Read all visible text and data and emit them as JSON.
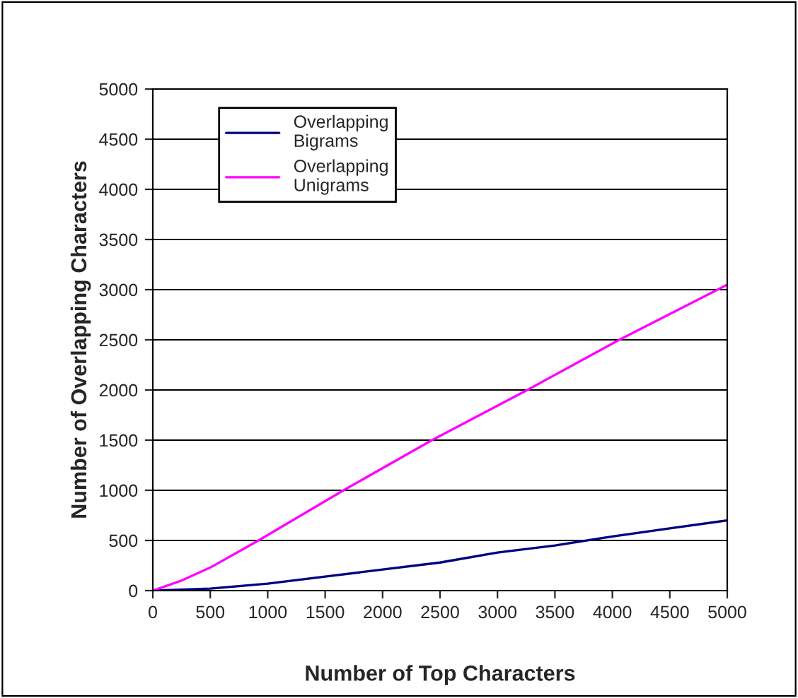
{
  "chart_data": {
    "type": "line",
    "xlabel": "Number of Top Characters",
    "ylabel": "Number of Overlapping Characters",
    "xlim": [
      0,
      5000
    ],
    "xticks": [
      0,
      500,
      1000,
      1500,
      2000,
      2500,
      3000,
      3500,
      4000,
      4500,
      5000
    ],
    "ylim": [
      0,
      5000
    ],
    "yticks": [
      0,
      500,
      1000,
      1500,
      2000,
      2500,
      3000,
      3500,
      4000,
      4500,
      5000
    ],
    "grid": "y",
    "legend": "top left",
    "marker": "none",
    "line_style": "solid",
    "series": [
      {
        "name": "Overlapping\nBigrams",
        "color": "#000080",
        "x": [
          0,
          500,
          1000,
          1500,
          2000,
          2500,
          3000,
          3500,
          4000,
          4500,
          5000
        ],
        "values": [
          0,
          20,
          70,
          140,
          210,
          280,
          380,
          450,
          540,
          620,
          700
        ]
      },
      {
        "name": "Overlapping\nUnigrams",
        "color": "#ff00ff",
        "x": [
          0,
          250,
          500,
          920,
          1660,
          2430,
          3260,
          4060,
          5000
        ],
        "values": [
          0,
          100,
          230,
          500,
          1000,
          1500,
          2000,
          2500,
          3050
        ]
      }
    ]
  }
}
